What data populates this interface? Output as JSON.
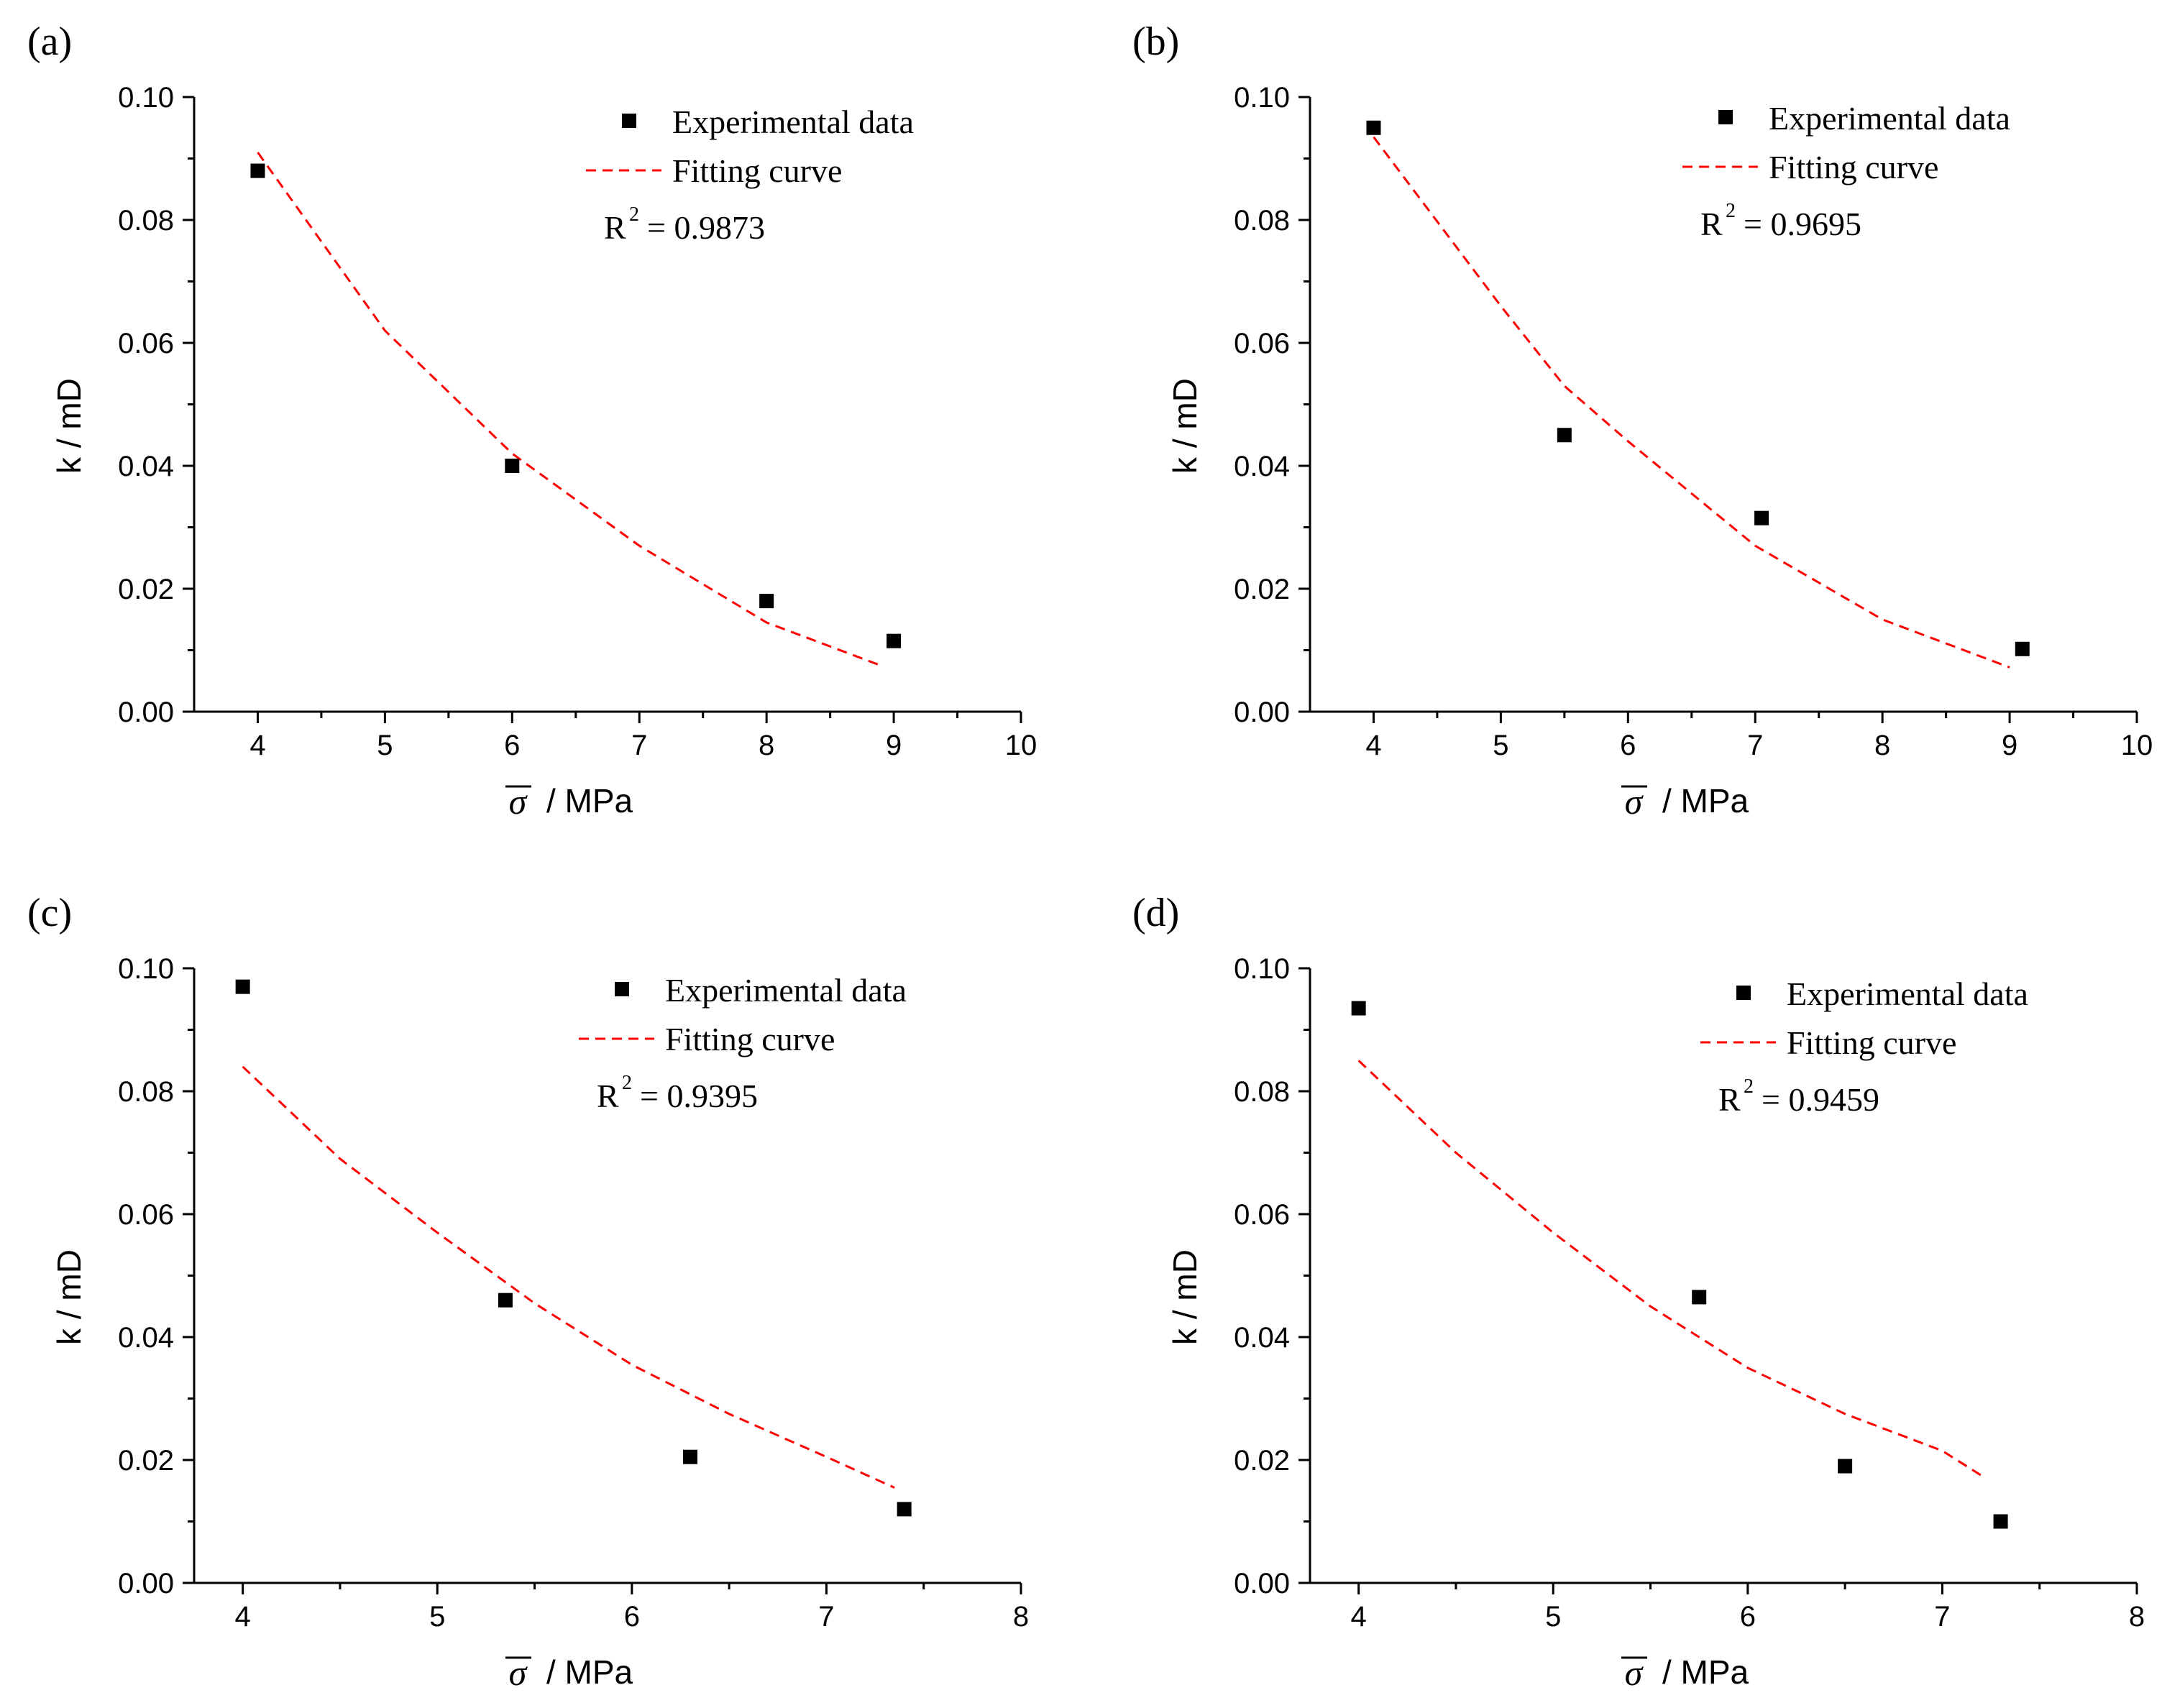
{
  "chart_data": [
    {
      "type": "scatter",
      "panel_label": "(a)",
      "xlabel": "σ",
      "xlabel_unit": "/ MPa",
      "ylabel": "k / mD",
      "xlim": [
        3.5,
        10
      ],
      "ylim": [
        0,
        0.1
      ],
      "xticks": [
        "4",
        "5",
        "6",
        "7",
        "8",
        "9",
        "10"
      ],
      "yticks": [
        "0.00",
        "0.02",
        "0.04",
        "0.06",
        "0.08",
        "0.10"
      ],
      "legend": {
        "experimental_label": "Experimental data",
        "fitting_label": "Fitting curve",
        "r2_label": "R",
        "r2_value": "= 0.9873"
      },
      "legend_placement": "top-right",
      "series": [
        {
          "name": "Experimental data",
          "x": [
            4,
            6,
            8,
            9
          ],
          "y": [
            0.088,
            0.04,
            0.018,
            0.0115
          ]
        },
        {
          "name": "Fitting curve",
          "style": "dashed",
          "color": "#ff0000",
          "x": [
            4,
            5,
            6,
            7,
            8,
            8.9
          ],
          "y": [
            0.091,
            0.062,
            0.042,
            0.027,
            0.0145,
            0.0075
          ]
        }
      ]
    },
    {
      "type": "scatter",
      "panel_label": "(b)",
      "xlabel": "σ",
      "xlabel_unit": "/ MPa",
      "ylabel": "k / mD",
      "xlim": [
        3.5,
        10
      ],
      "ylim": [
        0,
        0.1
      ],
      "xticks": [
        "4",
        "5",
        "6",
        "7",
        "8",
        "9",
        "10"
      ],
      "yticks": [
        "0.00",
        "0.02",
        "0.04",
        "0.06",
        "0.08",
        "0.10"
      ],
      "legend": {
        "experimental_label": "Experimental data",
        "fitting_label": "Fitting curve",
        "r2_label": "R",
        "r2_value": "= 0.9695"
      },
      "legend_placement": "top-right",
      "series": [
        {
          "name": "Experimental data",
          "x": [
            4,
            5.5,
            7.05,
            9.1
          ],
          "y": [
            0.095,
            0.045,
            0.0315,
            0.0102
          ]
        },
        {
          "name": "Fitting curve",
          "style": "dashed",
          "color": "#ff0000",
          "x": [
            4,
            5,
            5.5,
            6,
            7,
            8,
            9
          ],
          "y": [
            0.0935,
            0.066,
            0.053,
            0.044,
            0.027,
            0.015,
            0.0072
          ]
        }
      ]
    },
    {
      "type": "scatter",
      "panel_label": "(c)",
      "xlabel": "σ",
      "xlabel_unit": "/ MPa",
      "ylabel": "k / mD",
      "xlim": [
        3.75,
        8
      ],
      "ylim": [
        0,
        0.1
      ],
      "xticks": [
        "4",
        "5",
        "6",
        "7",
        "8"
      ],
      "yticks": [
        "0.00",
        "0.02",
        "0.04",
        "0.06",
        "0.08",
        "0.10"
      ],
      "legend": {
        "experimental_label": "Experimental data",
        "fitting_label": "Fitting curve",
        "r2_label": "R",
        "r2_value": "= 0.9395"
      },
      "legend_placement": "top-right",
      "series": [
        {
          "name": "Experimental data",
          "x": [
            4,
            5.35,
            6.3,
            7.4
          ],
          "y": [
            0.097,
            0.046,
            0.0205,
            0.012
          ]
        },
        {
          "name": "Fitting curve",
          "style": "dashed",
          "color": "#ff0000",
          "x": [
            4,
            4.5,
            5,
            5.5,
            6,
            6.5,
            7,
            7.35
          ],
          "y": [
            0.084,
            0.069,
            0.057,
            0.0455,
            0.0355,
            0.0275,
            0.0205,
            0.0155
          ]
        }
      ]
    },
    {
      "type": "scatter",
      "panel_label": "(d)",
      "xlabel": "σ",
      "xlabel_unit": "/ MPa",
      "ylabel": "k / mD",
      "xlim": [
        3.75,
        8
      ],
      "ylim": [
        0,
        0.1
      ],
      "xticks": [
        "4",
        "5",
        "6",
        "7",
        "8"
      ],
      "yticks": [
        "0.00",
        "0.02",
        "0.04",
        "0.06",
        "0.08",
        "0.10"
      ],
      "legend": {
        "experimental_label": "Experimental data",
        "fitting_label": "Fitting curve",
        "r2_label": "R",
        "r2_value": "= 0.9459"
      },
      "legend_placement": "top-right",
      "series": [
        {
          "name": "Experimental data",
          "x": [
            4,
            5.75,
            6.5,
            7.3
          ],
          "y": [
            0.0935,
            0.0465,
            0.019,
            0.01
          ]
        },
        {
          "name": "Fitting curve",
          "style": "dashed",
          "color": "#ff0000",
          "x": [
            4,
            4.5,
            5,
            5.5,
            6,
            6.5,
            7,
            7.2
          ],
          "y": [
            0.085,
            0.07,
            0.057,
            0.045,
            0.035,
            0.0275,
            0.0215,
            0.0175
          ]
        }
      ]
    }
  ]
}
